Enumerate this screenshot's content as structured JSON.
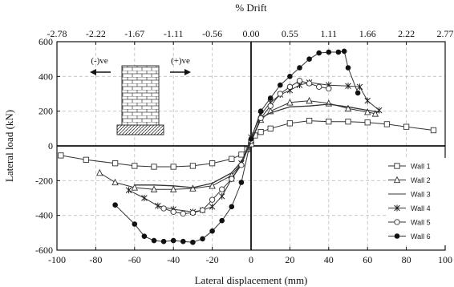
{
  "chart_data": {
    "type": "line",
    "xlabel": "Lateral displacement (mm)",
    "ylabel": "Lateral load (kN)",
    "top_axis_label": "% Drift",
    "xlim": [
      -100,
      100
    ],
    "ylim": [
      -600,
      600
    ],
    "x_ticks": [
      "-100",
      "-80",
      "-60",
      "-40",
      "-20",
      "0",
      "20",
      "40",
      "60",
      "80",
      "100"
    ],
    "y_ticks": [
      "600",
      "400",
      "200",
      "0",
      "-200",
      "-400",
      "-600"
    ],
    "top_ticks": [
      "-2.78",
      "-2.22",
      "-1.67",
      "-1.11",
      "-0.56",
      "0.00",
      "0.55",
      "1.11",
      "1.66",
      "2.22",
      "2.77"
    ],
    "grid": true,
    "legend_position": "bottom-right",
    "inset": {
      "left_label": "(-)ve",
      "right_label": "(+)ve"
    },
    "series": [
      {
        "name": "Wall 1",
        "marker": "square",
        "x": [
          -98,
          -85,
          -70,
          -60,
          -50,
          -40,
          -30,
          -20,
          -10,
          -5,
          -2,
          0,
          2,
          5,
          10,
          20,
          30,
          40,
          50,
          60,
          70,
          80,
          94
        ],
        "y": [
          -55,
          -80,
          -100,
          -115,
          -120,
          -120,
          -115,
          -100,
          -75,
          -50,
          -20,
          10,
          60,
          80,
          100,
          130,
          145,
          140,
          140,
          135,
          125,
          110,
          90
        ]
      },
      {
        "name": "Wall 2",
        "marker": "triangle",
        "x": [
          -78,
          -70,
          -60,
          -50,
          -40,
          -30,
          -20,
          -10,
          -5,
          0,
          5,
          10,
          20,
          30,
          40,
          50,
          60,
          64
        ],
        "y": [
          -155,
          -210,
          -240,
          -250,
          -250,
          -245,
          -230,
          -170,
          -100,
          30,
          150,
          200,
          250,
          260,
          245,
          215,
          195,
          185
        ]
      },
      {
        "name": "Wall 3",
        "marker": "none",
        "x": [
          -60,
          -50,
          -40,
          -30,
          -20,
          -10,
          -5,
          0,
          5,
          10,
          20,
          30,
          40,
          50,
          60,
          66
        ],
        "y": [
          -225,
          -225,
          -230,
          -240,
          -215,
          -155,
          -90,
          20,
          160,
          190,
          225,
          230,
          240,
          225,
          205,
          195
        ]
      },
      {
        "name": "Wall 4",
        "marker": "asterisk",
        "x": [
          -63,
          -55,
          -48,
          -40,
          -30,
          -25,
          -20,
          -15,
          -10,
          -5,
          0,
          5,
          10,
          15,
          20,
          25,
          30,
          40,
          50,
          56,
          60,
          66
        ],
        "y": [
          -255,
          -300,
          -345,
          -365,
          -380,
          -370,
          -350,
          -290,
          -190,
          -100,
          50,
          180,
          250,
          295,
          320,
          350,
          365,
          350,
          345,
          340,
          260,
          205
        ]
      },
      {
        "name": "Wall 5",
        "marker": "circle",
        "x": [
          -45,
          -40,
          -35,
          -30,
          -25,
          -20,
          -15,
          -10,
          -5,
          0,
          5,
          10,
          15,
          20,
          25,
          30,
          35,
          40
        ],
        "y": [
          -360,
          -380,
          -390,
          -385,
          -370,
          -310,
          -250,
          -190,
          -110,
          30,
          160,
          230,
          300,
          340,
          375,
          360,
          340,
          330
        ]
      },
      {
        "name": "Wall 6",
        "marker": "filled-circle",
        "x": [
          -70,
          -60,
          -55,
          -50,
          -45,
          -40,
          -35,
          -30,
          -25,
          -20,
          -15,
          -10,
          -5,
          0,
          5,
          10,
          15,
          20,
          25,
          30,
          35,
          40,
          45,
          48,
          50,
          55
        ],
        "y": [
          -340,
          -450,
          -520,
          -545,
          -550,
          -545,
          -550,
          -555,
          -535,
          -490,
          -430,
          -350,
          -210,
          40,
          200,
          275,
          350,
          400,
          450,
          500,
          535,
          540,
          540,
          545,
          450,
          305
        ]
      }
    ]
  }
}
